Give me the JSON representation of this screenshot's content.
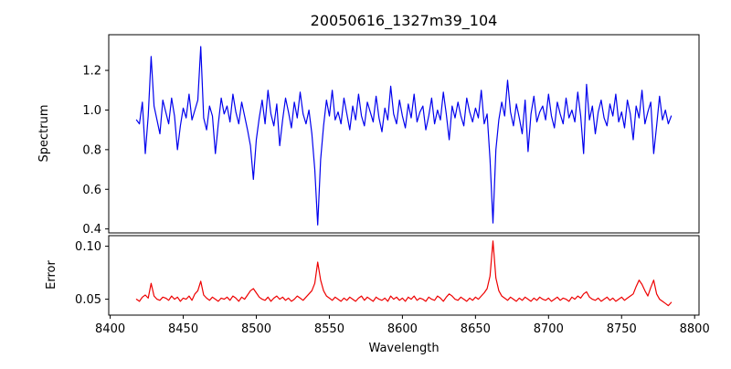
{
  "figure": {
    "title": "20050616_1327m39_104",
    "xlabel": "Wavelength",
    "background": "#ffffff"
  },
  "chart_data": {
    "type": "line",
    "title": "20050616_1327m39_104",
    "xlabel": "Wavelength",
    "grid": false,
    "legend": null,
    "x": {
      "start": 8418,
      "step": 2,
      "count": 184
    },
    "xlim": [
      8399,
      8803
    ],
    "xticks": [
      8400,
      8450,
      8500,
      8550,
      8600,
      8650,
      8700,
      8750,
      8800
    ],
    "panels": [
      {
        "name": "spectrum",
        "ylabel": "Spectrum",
        "color": "#0000ee",
        "ylim": [
          0.38,
          1.38
        ],
        "ytick_values": [
          0.4,
          0.6,
          0.8,
          1.0,
          1.2
        ],
        "ytick_labels": [
          "0.4",
          "0.6",
          "0.8",
          "1.0",
          "1.2"
        ],
        "values": [
          0.95,
          0.93,
          1.04,
          0.78,
          0.97,
          1.27,
          1.02,
          0.95,
          0.88,
          1.05,
          0.99,
          0.93,
          1.06,
          0.97,
          0.8,
          0.92,
          1.01,
          0.96,
          1.08,
          0.95,
          1.0,
          1.05,
          1.32,
          0.96,
          0.9,
          1.02,
          0.97,
          0.78,
          0.93,
          1.06,
          0.98,
          1.02,
          0.94,
          1.08,
          0.99,
          0.93,
          1.04,
          0.97,
          0.9,
          0.82,
          0.65,
          0.85,
          0.96,
          1.05,
          0.93,
          1.1,
          0.98,
          0.92,
          1.03,
          0.82,
          0.95,
          1.06,
          0.99,
          0.91,
          1.04,
          0.96,
          1.09,
          0.98,
          0.93,
          1.0,
          0.88,
          0.7,
          0.42,
          0.75,
          0.92,
          1.05,
          0.97,
          1.1,
          0.95,
          0.99,
          0.93,
          1.06,
          0.98,
          0.9,
          1.02,
          0.95,
          1.08,
          0.97,
          0.92,
          1.04,
          0.99,
          0.94,
          1.07,
          0.96,
          0.89,
          1.01,
          0.95,
          1.12,
          0.98,
          0.93,
          1.05,
          0.97,
          0.91,
          1.03,
          0.96,
          1.08,
          0.94,
          0.99,
          1.02,
          0.9,
          0.97,
          1.06,
          0.93,
          1.0,
          0.95,
          1.09,
          0.98,
          0.85,
          1.02,
          0.96,
          1.04,
          0.97,
          0.92,
          1.06,
          0.99,
          0.94,
          1.01,
          0.96,
          1.1,
          0.93,
          0.98,
          0.75,
          0.43,
          0.8,
          0.95,
          1.04,
          0.97,
          1.15,
          0.99,
          0.92,
          1.03,
          0.96,
          0.88,
          1.05,
          0.79,
          0.98,
          1.07,
          0.94,
          0.99,
          1.02,
          0.95,
          1.08,
          0.97,
          0.91,
          1.04,
          0.98,
          0.93,
          1.06,
          0.96,
          1.0,
          0.94,
          1.09,
          0.97,
          0.78,
          1.13,
          0.95,
          1.02,
          0.88,
          0.99,
          1.05,
          0.96,
          0.92,
          1.03,
          0.97,
          1.08,
          0.94,
          0.99,
          0.91,
          1.05,
          0.98,
          0.85,
          1.02,
          0.96,
          1.1,
          0.93,
          0.99,
          1.04,
          0.78,
          0.92,
          1.07,
          0.95,
          1.0,
          0.93,
          0.97
        ]
      },
      {
        "name": "error",
        "ylabel": "Error",
        "color": "#ee0000",
        "ylim": [
          0.035,
          0.11
        ],
        "ytick_values": [
          0.05,
          0.1
        ],
        "ytick_labels": [
          "0.05",
          "0.10"
        ],
        "values": [
          0.05,
          0.048,
          0.052,
          0.054,
          0.051,
          0.065,
          0.053,
          0.05,
          0.049,
          0.052,
          0.051,
          0.049,
          0.053,
          0.05,
          0.052,
          0.048,
          0.051,
          0.05,
          0.053,
          0.049,
          0.055,
          0.058,
          0.067,
          0.054,
          0.051,
          0.049,
          0.052,
          0.05,
          0.048,
          0.051,
          0.05,
          0.052,
          0.049,
          0.053,
          0.051,
          0.048,
          0.052,
          0.05,
          0.054,
          0.058,
          0.06,
          0.056,
          0.052,
          0.05,
          0.049,
          0.052,
          0.048,
          0.051,
          0.053,
          0.05,
          0.052,
          0.049,
          0.051,
          0.048,
          0.05,
          0.053,
          0.051,
          0.049,
          0.052,
          0.055,
          0.058,
          0.065,
          0.085,
          0.068,
          0.058,
          0.053,
          0.051,
          0.049,
          0.052,
          0.05,
          0.048,
          0.051,
          0.049,
          0.052,
          0.05,
          0.048,
          0.051,
          0.053,
          0.049,
          0.052,
          0.05,
          0.048,
          0.052,
          0.05,
          0.049,
          0.051,
          0.048,
          0.053,
          0.05,
          0.052,
          0.049,
          0.051,
          0.048,
          0.052,
          0.05,
          0.053,
          0.049,
          0.051,
          0.05,
          0.048,
          0.052,
          0.05,
          0.049,
          0.053,
          0.051,
          0.048,
          0.052,
          0.055,
          0.053,
          0.05,
          0.049,
          0.052,
          0.05,
          0.048,
          0.051,
          0.049,
          0.052,
          0.05,
          0.053,
          0.056,
          0.06,
          0.072,
          0.105,
          0.07,
          0.058,
          0.053,
          0.051,
          0.049,
          0.052,
          0.05,
          0.048,
          0.051,
          0.049,
          0.052,
          0.05,
          0.048,
          0.051,
          0.049,
          0.052,
          0.05,
          0.049,
          0.051,
          0.048,
          0.05,
          0.052,
          0.049,
          0.051,
          0.05,
          0.048,
          0.052,
          0.05,
          0.053,
          0.051,
          0.055,
          0.057,
          0.052,
          0.05,
          0.049,
          0.051,
          0.048,
          0.05,
          0.052,
          0.049,
          0.051,
          0.048,
          0.05,
          0.052,
          0.049,
          0.051,
          0.053,
          0.055,
          0.062,
          0.068,
          0.064,
          0.058,
          0.053,
          0.061,
          0.068,
          0.055,
          0.05,
          0.048,
          0.046,
          0.044,
          0.047
        ]
      }
    ]
  }
}
